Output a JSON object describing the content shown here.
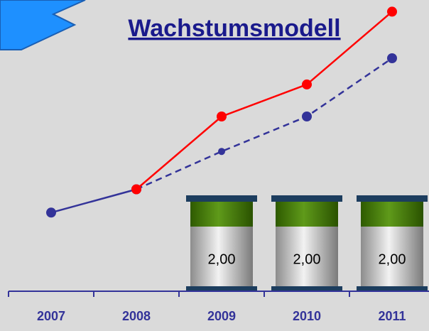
{
  "chart_data": {
    "type": "line",
    "title": "Wachstumsmodell",
    "categories": [
      "2007",
      "2008",
      "2009",
      "2010",
      "2011"
    ],
    "series": [
      {
        "color": "#333399",
        "values": [
          27,
          35,
          48,
          60,
          80
        ],
        "dash_start": 1
      },
      {
        "color": "#ff0000",
        "values": [
          null,
          35,
          60,
          71,
          96
        ]
      }
    ],
    "barrels": {
      "values": [
        null,
        null,
        2,
        2,
        2
      ],
      "value_labels": [
        null,
        null,
        "2,00",
        "2,00",
        "2,00"
      ]
    },
    "ylim": [
      0,
      100
    ]
  }
}
